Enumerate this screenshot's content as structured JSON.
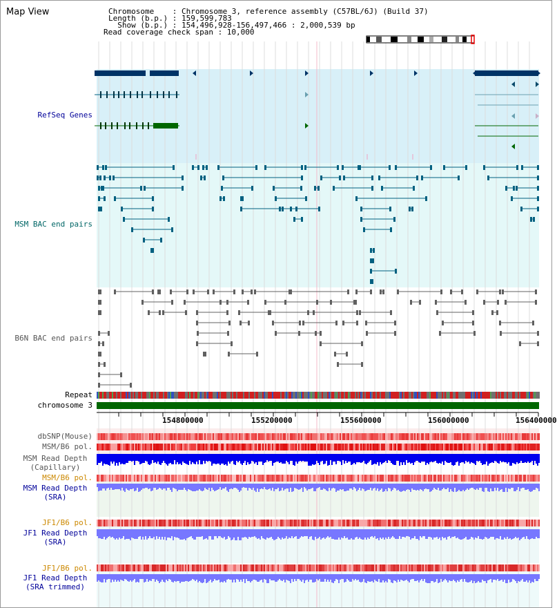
{
  "view_title": "Map View",
  "info": {
    "line1": "Chromosome    : Chromosome 3, reference assembly (C57BL/6J) (Build 37)",
    "line2": "Length (b.p.) : 159,599,783",
    "line3": "  Show (b.p.) : 154,496,928-156,497,466 : 2,000,539 bp",
    "line4": "Read coverage check span : 10,000"
  },
  "region": {
    "start": 154496928,
    "end": 156497466
  },
  "tracks": {
    "refseq": "RefSeq Genes",
    "msm_bac": "MSM BAC end pairs",
    "b6n_bac": "B6N BAC end pairs",
    "repeat": "Repeat",
    "chromosome": "chromosome 3",
    "dbsnp": "dbSNP(Mouse)",
    "msm_b6_pol_1": "MSM/B6 pol.",
    "msm_cap_1": "MSM Read Depth",
    "msm_cap_2": "(Capillary)",
    "msm_b6_pol_2": "MSM/B6 pol.",
    "msm_sra_1": "MSM Read Depth",
    "msm_sra_2": "(SRA)",
    "jf1_pol_1": "JF1/B6 pol.",
    "jf1_sra_1": "JF1 Read Depth",
    "jf1_sra_2": "(SRA)",
    "jf1_pol_2": "JF1/B6 pol.",
    "jf1_trim_1": "JF1 Read Depth",
    "jf1_trim_2": "(SRA trimmed)"
  },
  "axis_ticks": [
    "154800000",
    "155200000",
    "155600000",
    "156000000",
    "156400000"
  ],
  "colors": {
    "refseq_bg": "#d8f0f8",
    "msm_bg": "#e4f8f8",
    "gene_dark": "#003366",
    "gene_green": "#006600",
    "msm_pair": "#006080",
    "b6n_pair": "#606060",
    "label_navy": "#000099",
    "label_teal": "#006666",
    "label_gray": "#555555",
    "label_orange": "#cc8800",
    "snp_red": "#ee3333",
    "depth_blue": "#0000ee",
    "depth_light": "#7777ff",
    "chromosome_green": "#006600"
  }
}
